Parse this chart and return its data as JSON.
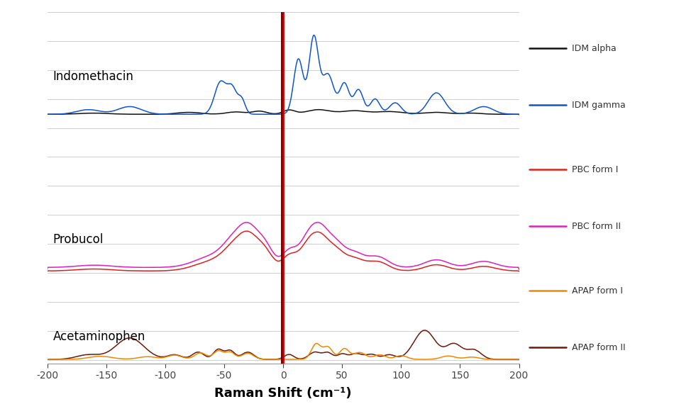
{
  "xlabel": "Raman Shift (cm⁻¹)",
  "xlim": [
    -200,
    200
  ],
  "xticks": [
    -200,
    -150,
    -100,
    -50,
    0,
    50,
    100,
    150,
    200
  ],
  "background_color": "#ffffff",
  "grid_color": "#d0d0d0",
  "series": {
    "IDM_alpha": {
      "color": "#111111",
      "label": "IDM alpha"
    },
    "IDM_gamma": {
      "color": "#1155cc",
      "label": "IDM gamma"
    },
    "PBC_form1": {
      "color": "#dd2222",
      "label": "PBC form I"
    },
    "PBC_form2": {
      "color": "#dd22bb",
      "label": "PBC form II"
    },
    "APAP_form1": {
      "color": "#ee8800",
      "label": "APAP form I"
    },
    "APAP_form2": {
      "color": "#6b1a0a",
      "label": "APAP form II"
    }
  },
  "laser_color1": "#cc0000",
  "laser_color2": "#4a0000",
  "group_labels": [
    "Indomethacin",
    "Probucol",
    "Acetaminophen"
  ]
}
